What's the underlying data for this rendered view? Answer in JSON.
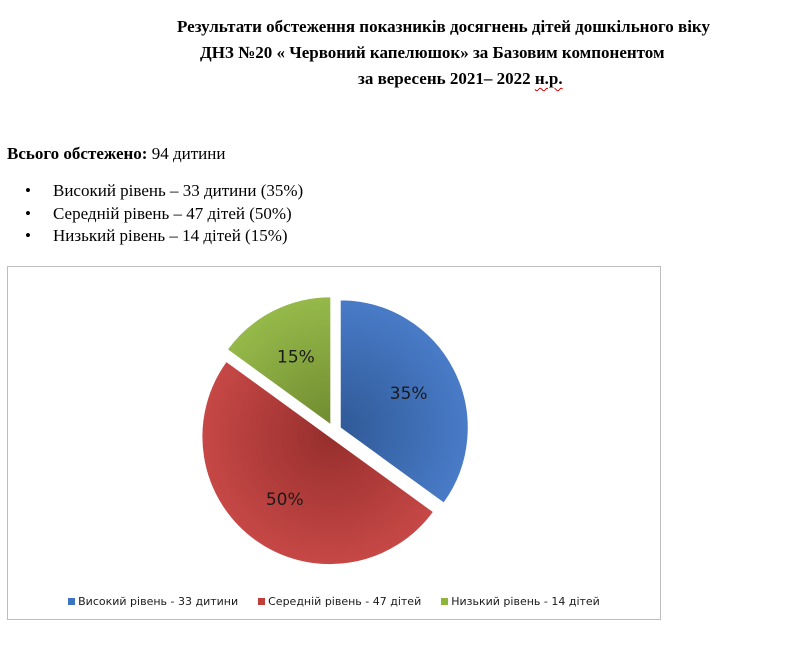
{
  "header": {
    "line1": "Результати обстеження показників досягнень дітей дошкільного віку",
    "line2": "ДНЗ №20 « Червоний капелюшок» за Базовим компонентом",
    "line3_main": "за вересень 2021– 2022 ",
    "line3_squiggle": "н.р."
  },
  "summary": {
    "label": "Всього обстежено:",
    "value": " 94 дитини"
  },
  "bullets": [
    "Високий рівень – 33 дитини (35%)",
    "Середній рівень – 47 дітей (50%)",
    "Низький рівень – 14 дітей (15%)"
  ],
  "chart_data": {
    "type": "pie",
    "exploded": true,
    "legend_position": "bottom",
    "slices": [
      {
        "name": "Високий рівень - 33 дитини",
        "value": 35,
        "label": "35%",
        "color": "#3d73c3"
      },
      {
        "name": "Середній рівень - 47 дітей",
        "value": 50,
        "label": "50%",
        "color": "#c23c3a"
      },
      {
        "name": "Низький рівень - 14 дітей",
        "value": 15,
        "label": "15%",
        "color": "#8fb43e"
      }
    ]
  }
}
